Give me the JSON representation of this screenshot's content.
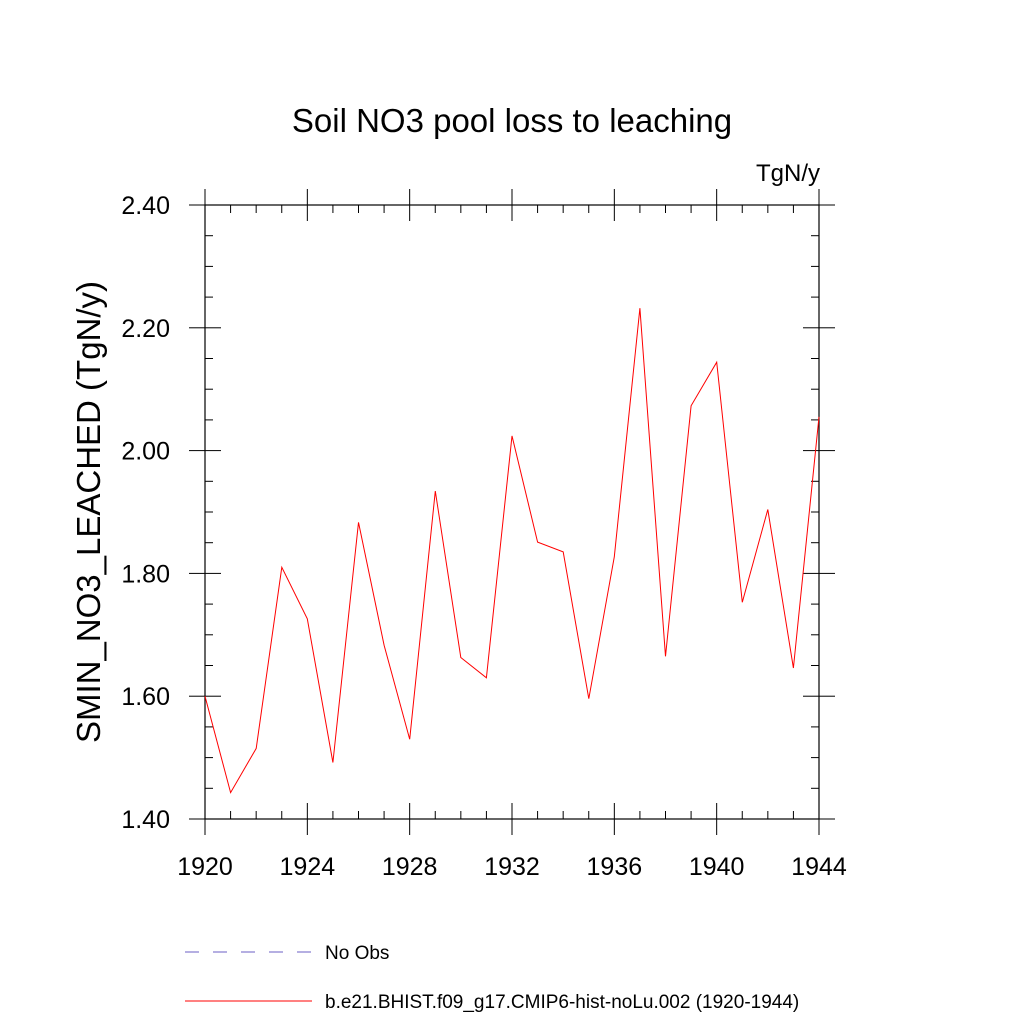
{
  "chart_data": {
    "type": "line",
    "title": "Soil NO3 pool loss to leaching",
    "units": "TgN/y",
    "xlabel": "",
    "ylabel": "SMIN_NO3_LEACHED  (TgN/y)",
    "xlim": [
      1920,
      1944
    ],
    "ylim": [
      1.4,
      2.4
    ],
    "x_ticks": [
      1920,
      1924,
      1928,
      1932,
      1936,
      1940,
      1944
    ],
    "y_ticks": [
      "1.40",
      "1.60",
      "1.80",
      "2.00",
      "2.20",
      "2.40"
    ],
    "grid": false,
    "legend_position": "bottom",
    "series": [
      {
        "name": "b.e21.BHIST.f09_g17.CMIP6-hist-noLu.002 (1920-1944)",
        "color": "#ff0000",
        "style": "solid",
        "x": [
          1920,
          1921,
          1922,
          1923,
          1924,
          1925,
          1926,
          1927,
          1928,
          1929,
          1930,
          1931,
          1932,
          1933,
          1934,
          1935,
          1936,
          1937,
          1938,
          1939,
          1940,
          1941,
          1942,
          1943,
          1944
        ],
        "values": [
          1.6,
          1.443,
          1.515,
          1.81,
          1.726,
          1.492,
          1.883,
          1.683,
          1.53,
          1.934,
          1.663,
          1.63,
          2.024,
          1.851,
          1.835,
          1.596,
          1.827,
          2.232,
          1.665,
          2.073,
          2.144,
          1.753,
          1.904,
          1.646,
          2.055
        ]
      }
    ],
    "legend": [
      {
        "label": "No Obs",
        "color": "#6b5fc4",
        "style": "dashed"
      },
      {
        "label": "b.e21.BHIST.f09_g17.CMIP6-hist-noLu.002 (1920-1944)",
        "color": "#ff0000",
        "style": "solid"
      }
    ]
  }
}
